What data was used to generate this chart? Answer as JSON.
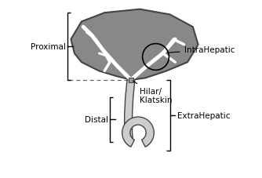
{
  "background_color": "#ffffff",
  "liver_color": "#888888",
  "liver_edge_color": "#444444",
  "duct_color": "#ffffff",
  "duct_linewidth": 3.5,
  "labels": {
    "proximal": "Proximal",
    "hilar": "Hilar/\nKlatskin",
    "intrahepatic": "IntraHepatic",
    "extrahepatic": "ExtraHepatic",
    "distal": "Distal"
  },
  "label_fontsize": 7.5,
  "figsize": [
    3.34,
    2.28
  ],
  "dpi": 100
}
